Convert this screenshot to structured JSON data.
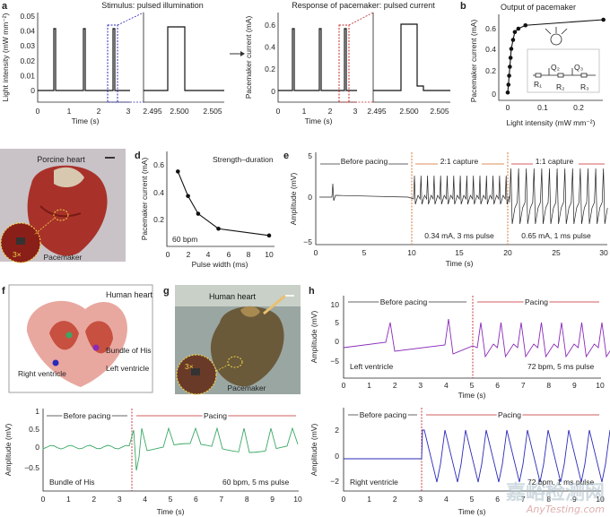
{
  "panel_labels": {
    "a": "a",
    "b": "b",
    "c": "c",
    "d": "d",
    "e": "e",
    "f": "f",
    "g": "g",
    "h": "h"
  },
  "a": {
    "title_left": "Stimulus: pulsed illumination",
    "title_right": "Response of pacemaker: pulsed current",
    "ylabel_left": "Light intensity (mW mm⁻²)",
    "ylabel_right": "Pacemaker current (mA)",
    "xlabel": "Time (s)",
    "left_yticks": [
      "0.05",
      "0.04",
      "0.03",
      "0.02",
      "0.01",
      "0"
    ],
    "right_yticks": [
      "0.6",
      "0.4",
      "0.2",
      "0"
    ],
    "xticks_main": [
      "0",
      "1",
      "2",
      "3"
    ],
    "xticks_zoom": [
      "2.495",
      "2.500",
      "2.505"
    ]
  },
  "b": {
    "title": "Output of pacemaker",
    "ylabel": "Pacemaker current (mA)",
    "xlabel": "Light intensity (mW mm⁻²)",
    "yticks": [
      "0.6",
      "0.4",
      "0.2",
      "0"
    ],
    "xticks": [
      "0",
      "0.1",
      "0.2"
    ],
    "circuit": {
      "q2": "Q₂",
      "q3": "Q₃",
      "r1": "R₁",
      "r2": "R₂",
      "r3": "R₃"
    }
  },
  "c": {
    "title": "Porcine heart",
    "inset": "3×",
    "label": "Pacemaker"
  },
  "d": {
    "annotation": "Strength–duration",
    "bpm": "60 bpm",
    "ylabel": "Pacemaker current (mA)",
    "xlabel": "Pulse width (ms)",
    "yticks": [
      "0.6",
      "0.4",
      "0.2"
    ],
    "xticks": [
      "0",
      "2",
      "4",
      "6",
      "8",
      "10"
    ]
  },
  "e": {
    "label_before": "Before pacing",
    "label_21": "2:1 capture",
    "label_11": "1:1 capture",
    "note_21": "0.34 mA, 3 ms pulse",
    "note_11": "0.65 mA, 1 ms pulse",
    "ylabel": "Amplitude (mV)",
    "xlabel": "Time (s)",
    "yticks": [
      "5",
      "0",
      "−5"
    ],
    "xticks": [
      "0",
      "5",
      "10",
      "15",
      "20",
      "25",
      "30"
    ]
  },
  "f": {
    "title": "Human heart",
    "label_bundle": "Bundle of His",
    "label_left": "Left ventricle",
    "label_right": "Right ventricle",
    "label_before": "Before pacing",
    "label_pacing": "Pacing",
    "trace_label": "Bundle of His",
    "note": "60 bpm, 5 ms pulse",
    "ylabel": "Amplitude (mV)",
    "xlabel": "Time (s)",
    "yticks": [
      "1",
      "0.5",
      "0",
      "−0.5"
    ],
    "xticks": [
      "0",
      "1",
      "2",
      "3",
      "4",
      "5",
      "6",
      "7",
      "8",
      "9",
      "10"
    ]
  },
  "g": {
    "title": "Human heart",
    "inset": "3×",
    "label": "Pacemaker"
  },
  "h": {
    "label_before": "Before pacing",
    "label_pacing": "Pacing",
    "top_trace_label": "Left ventricle",
    "top_note": "72 bpm, 5 ms pulse",
    "bottom_trace_label": "Right ventricle",
    "bottom_note": "72 bpm, 1 ms pulse",
    "ylabel": "Amplitude (mV)",
    "xlabel": "Time (s)",
    "top_yticks": [
      "10",
      "5",
      "0",
      "−5"
    ],
    "bottom_yticks": [
      "2",
      "0",
      "−2"
    ],
    "xticks": [
      "0",
      "1",
      "2",
      "3",
      "4",
      "5",
      "6",
      "7",
      "8",
      "9",
      "10"
    ]
  },
  "watermark": {
    "cn": "嘉峪检测网",
    "en": "AnyTesting.com"
  },
  "colors": {
    "blue": "#2a2ab8",
    "red": "#c0282a",
    "green": "#3aa864",
    "purple": "#8a2ab8",
    "navy": "#28287a",
    "orange": "#d06a20"
  },
  "chart_data": [
    {
      "type": "line",
      "id": "a_light",
      "title": "Stimulus: pulsed illumination",
      "xlabel": "Time (s)",
      "ylabel": "Light intensity (mW mm⁻²)",
      "xlim": [
        0,
        3
      ],
      "ylim": [
        0,
        0.05
      ],
      "x": [
        0.5,
        1.5,
        2.5
      ],
      "values": [
        0.05,
        0.05,
        0.05
      ]
    },
    {
      "type": "line",
      "id": "a_current",
      "title": "Response of pacemaker: pulsed current",
      "xlabel": "Time (s)",
      "ylabel": "Pacemaker current (mA)",
      "xlim": [
        0,
        3
      ],
      "ylim": [
        0,
        0.7
      ],
      "x": [
        0.5,
        1.5,
        2.5
      ],
      "values": [
        0.6,
        0.6,
        0.6
      ]
    },
    {
      "type": "line",
      "id": "b",
      "title": "Output of pacemaker",
      "xlabel": "Light intensity (mW mm⁻²)",
      "ylabel": "Pacemaker current (mA)",
      "x": [
        0.0,
        0.002,
        0.004,
        0.006,
        0.008,
        0.01,
        0.015,
        0.02,
        0.03,
        0.05,
        0.27
      ],
      "values": [
        0.03,
        0.1,
        0.18,
        0.26,
        0.34,
        0.42,
        0.5,
        0.57,
        0.6,
        0.63,
        0.68
      ]
    },
    {
      "type": "line",
      "id": "d",
      "title": "",
      "xlabel": "Pulse width (ms)",
      "ylabel": "Pacemaker current (mA)",
      "x": [
        1,
        2,
        3,
        5,
        10
      ],
      "values": [
        0.65,
        0.47,
        0.34,
        0.23,
        0.18
      ]
    }
  ]
}
